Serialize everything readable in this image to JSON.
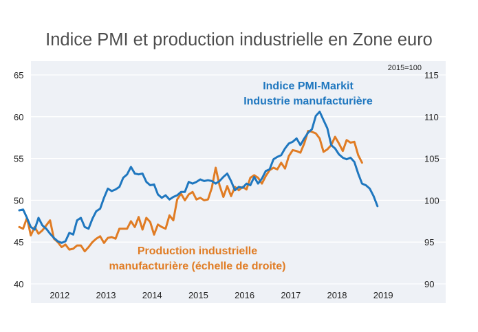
{
  "title": "Indice PMI et production industrielle en Zone euro",
  "colors": {
    "pmi": "#1f77bf",
    "production": "#e07c24",
    "panel": "#eef1f6",
    "grid": "#ffffff"
  },
  "chart_data": {
    "type": "line",
    "title": "Indice PMI et production industrielle en Zone euro",
    "x_tick_labels": [
      "2012",
      "2013",
      "2014",
      "2015",
      "2016",
      "2017",
      "2018",
      "2019"
    ],
    "y_left": {
      "ticks": [
        "65",
        "60",
        "55",
        "50",
        "45",
        "40"
      ],
      "range": [
        40,
        65
      ]
    },
    "y_right": {
      "ticks": [
        "115",
        "110",
        "105",
        "100",
        "95",
        "90"
      ],
      "range": [
        90,
        115
      ],
      "note": "2015=100"
    },
    "grid": true,
    "annotations": {
      "pmi": [
        "Indice PMI-Markit",
        "Industrie manufacturière"
      ],
      "production": [
        "Production industrielle",
        "manufacturière (échelle de droite)"
      ]
    },
    "series": [
      {
        "name": "Indice PMI-Markit Industrie manufacturière",
        "axis": "left",
        "start": "2011-08",
        "frequency": "monthly",
        "values": [
          48.8,
          48.9,
          47.9,
          46.8,
          46.5,
          47.9,
          47.0,
          46.6,
          46.0,
          45.5,
          45.1,
          44.9,
          45.1,
          46.1,
          45.9,
          47.6,
          47.9,
          46.8,
          46.6,
          47.8,
          48.7,
          49.0,
          50.3,
          51.4,
          51.1,
          51.3,
          51.6,
          52.7,
          53.1,
          54.0,
          53.2,
          53.1,
          53.2,
          52.2,
          51.8,
          51.9,
          50.7,
          50.3,
          50.6,
          50.1,
          50.4,
          50.6,
          51.0,
          51.0,
          52.2,
          52.0,
          52.2,
          52.5,
          52.3,
          52.4,
          52.3,
          52.0,
          52.3,
          52.8,
          53.2,
          52.3,
          51.2,
          51.6,
          51.5,
          52.0,
          51.8,
          52.8,
          52.0,
          52.6,
          53.5,
          53.7,
          54.9,
          55.2,
          55.4,
          56.2,
          56.8,
          57.0,
          57.4,
          56.6,
          57.4,
          58.1,
          58.5,
          60.1,
          60.6,
          59.6,
          58.6,
          56.6,
          56.2,
          55.5,
          55.1,
          54.9,
          55.1,
          54.6,
          53.2,
          52.0,
          51.8,
          51.4,
          50.5,
          49.3
        ]
      },
      {
        "name": "Production industrielle manufacturière (échelle de droite)",
        "axis": "right",
        "start": "2011-08",
        "frequency": "monthly",
        "values": [
          96.8,
          96.6,
          97.9,
          95.8,
          96.8,
          96.0,
          96.4,
          97.0,
          97.6,
          95.4,
          95.0,
          94.4,
          94.7,
          94.1,
          94.2,
          94.6,
          94.6,
          93.9,
          94.4,
          95.0,
          95.4,
          95.7,
          94.9,
          95.5,
          95.6,
          95.4,
          96.6,
          96.6,
          96.6,
          97.5,
          96.8,
          98.0,
          96.5,
          97.9,
          97.4,
          95.9,
          97.1,
          96.8,
          96.6,
          98.2,
          97.6,
          100.1,
          100.8,
          100.0,
          100.7,
          101.0,
          100.1,
          100.3,
          100.0,
          100.1,
          101.5,
          103.9,
          101.8,
          100.4,
          101.7,
          100.5,
          101.6,
          101.2,
          101.6,
          101.3,
          102.7,
          103.0,
          102.7,
          102.0,
          102.9,
          103.6,
          103.9,
          103.7,
          104.5,
          103.8,
          105.3,
          106.0,
          105.9,
          105.7,
          106.8,
          108.3,
          108.2,
          108.0,
          107.4,
          105.8,
          106.1,
          106.6,
          107.6,
          106.8,
          105.9,
          107.2,
          106.9,
          107.0,
          105.4,
          104.5
        ]
      }
    ]
  }
}
